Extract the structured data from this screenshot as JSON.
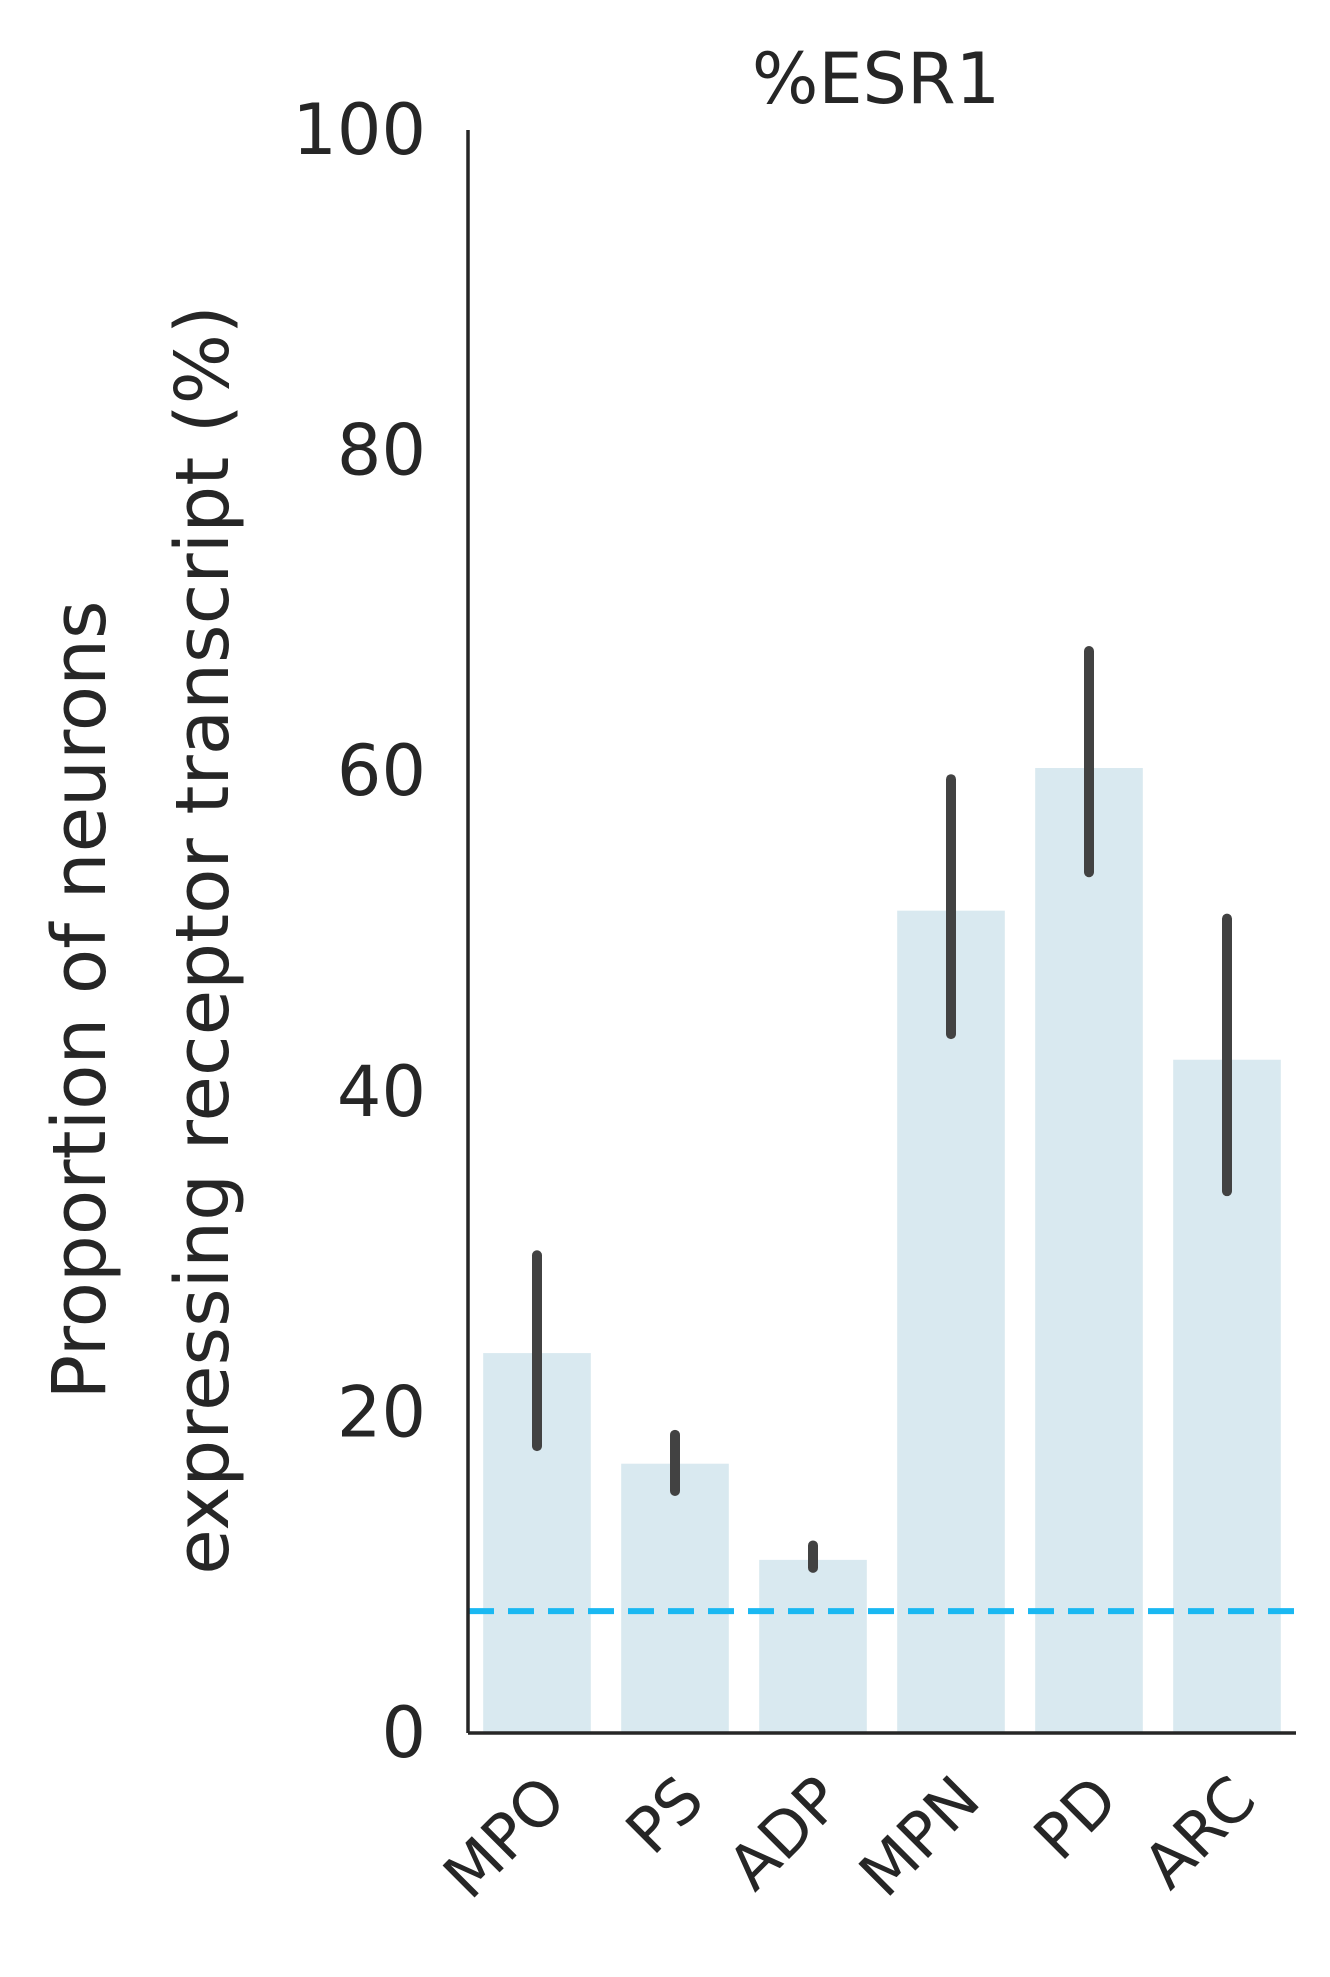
{
  "chart_data": {
    "type": "bar",
    "title": "%ESR1",
    "ylabel_lines": [
      "Proportion of neurons",
      "expressing receptor transcript (%)"
    ],
    "xlabel": "",
    "categories": [
      "MPO",
      "PS",
      "ADP",
      "MPN",
      "PD",
      "ARC"
    ],
    "values": [
      23.7,
      16.8,
      10.8,
      51.3,
      60.2,
      42.0
    ],
    "error_low": [
      17.9,
      15.1,
      10.3,
      43.6,
      53.7,
      33.8
    ],
    "error_high": [
      29.8,
      18.6,
      11.7,
      59.5,
      67.5,
      50.8
    ],
    "ylim": [
      0,
      100
    ],
    "yticks": [
      0,
      20,
      40,
      60,
      80,
      100
    ],
    "reference_line": 7.6,
    "grid": false,
    "legend": "none",
    "colors": {
      "bar": "#d9e9f0",
      "error_bar": "#424242",
      "reference_line": "#1ab8f2",
      "axis": "#262626",
      "text": "#262626"
    }
  }
}
